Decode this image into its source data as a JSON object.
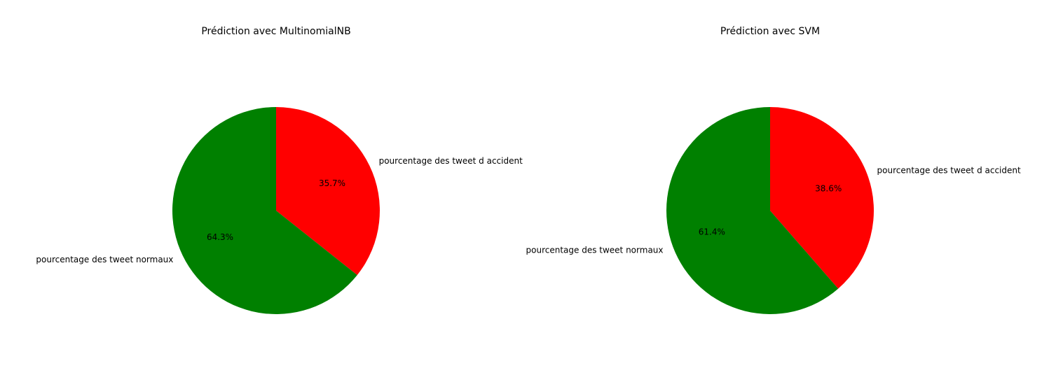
{
  "chart_data": [
    {
      "type": "pie",
      "title": "Prédiction avec MultinomialNB",
      "labels": [
        "pourcentage des tweet d accident",
        "pourcentage des tweet normaux"
      ],
      "values": [
        35.7,
        64.3
      ],
      "percent_labels": [
        "35.7%",
        "64.3%"
      ],
      "colors": [
        "#ff0000",
        "#008000"
      ],
      "start_angle": 90,
      "direction": "clockwise"
    },
    {
      "type": "pie",
      "title": "Prédiction avec SVM",
      "labels": [
        "pourcentage des tweet d accident",
        "pourcentage des tweet normaux"
      ],
      "values": [
        38.6,
        61.4
      ],
      "percent_labels": [
        "38.6%",
        "61.4%"
      ],
      "colors": [
        "#ff0000",
        "#008000"
      ],
      "start_angle": 90,
      "direction": "clockwise"
    }
  ]
}
